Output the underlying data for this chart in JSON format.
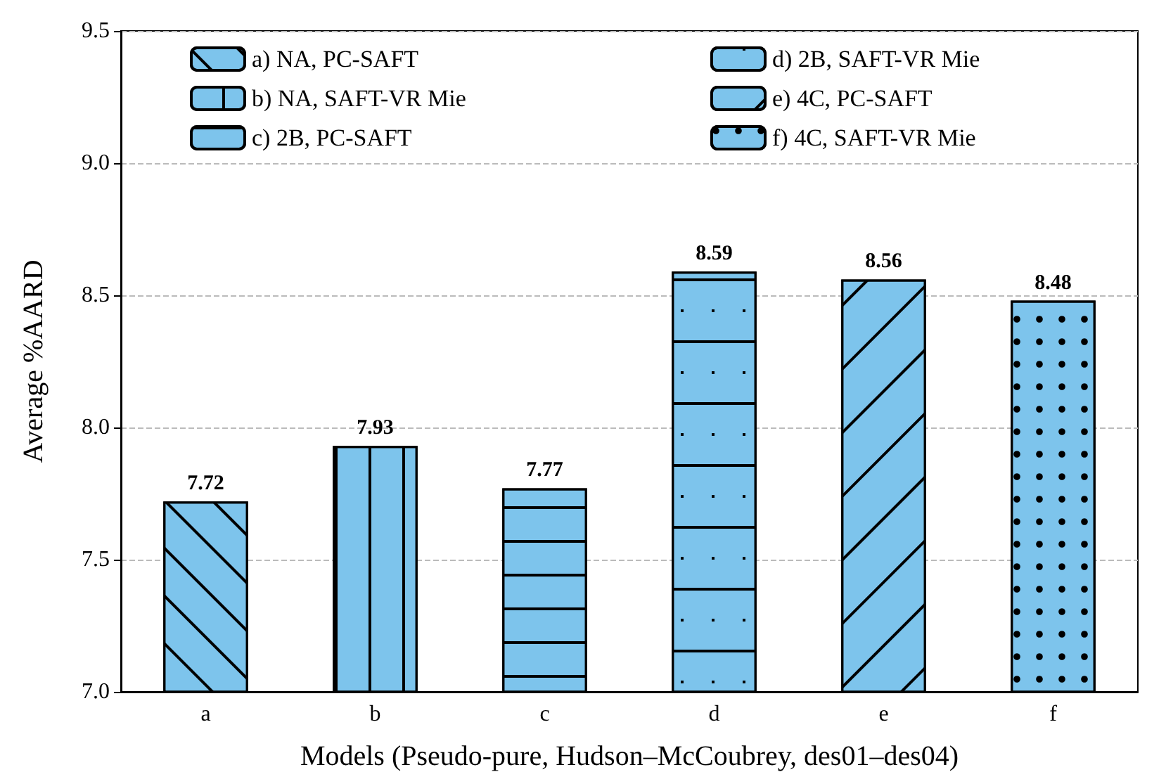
{
  "chart_data": {
    "type": "bar",
    "xlabel": "Models (Pseudo-pure, Hudson–McCoubrey, des01–des04)",
    "ylabel": "Average %AARD",
    "categories": [
      "a",
      "b",
      "c",
      "d",
      "e",
      "f"
    ],
    "series": [
      {
        "name": "a) NA, PC-SAFT",
        "color": "#7dc4ec",
        "values": [
          7.72,
          null,
          null,
          null,
          null,
          null
        ]
      },
      {
        "name": "b) NA, SAFT-VR Mie",
        "color": "#7dc4ec",
        "values": [
          null,
          7.93,
          null,
          null,
          null,
          null
        ]
      },
      {
        "name": "c) 2B, PC-SAFT",
        "color": "#7dc4ec",
        "values": [
          null,
          null,
          7.77,
          null,
          null,
          null
        ]
      },
      {
        "name": "d) 2B, SAFT-VR Mie",
        "color": "#7dc4ec",
        "values": [
          null,
          null,
          null,
          8.59,
          null,
          null
        ]
      },
      {
        "name": "e) 4C, PC-SAFT",
        "color": "#7dc4ec",
        "values": [
          null,
          null,
          null,
          null,
          8.56,
          null
        ]
      },
      {
        "name": "f) 4C, SAFT-VR Mie",
        "color": "#7dc4ec",
        "values": [
          null,
          null,
          null,
          null,
          null,
          8.48
        ]
      }
    ],
    "ylim": [
      7.0,
      9.5
    ],
    "yticks": [
      {
        "value": 7,
        "label": "7.0"
      },
      {
        "value": 7.5,
        "label": "7.5"
      },
      {
        "value": 8,
        "label": "8.0"
      },
      {
        "value": 8.5,
        "label": "8.5"
      },
      {
        "value": 9,
        "label": "9.0"
      },
      {
        "value": 9.5,
        "label": "9.5"
      }
    ],
    "grid": "y",
    "legend": "top",
    "data_labels": true
  }
}
